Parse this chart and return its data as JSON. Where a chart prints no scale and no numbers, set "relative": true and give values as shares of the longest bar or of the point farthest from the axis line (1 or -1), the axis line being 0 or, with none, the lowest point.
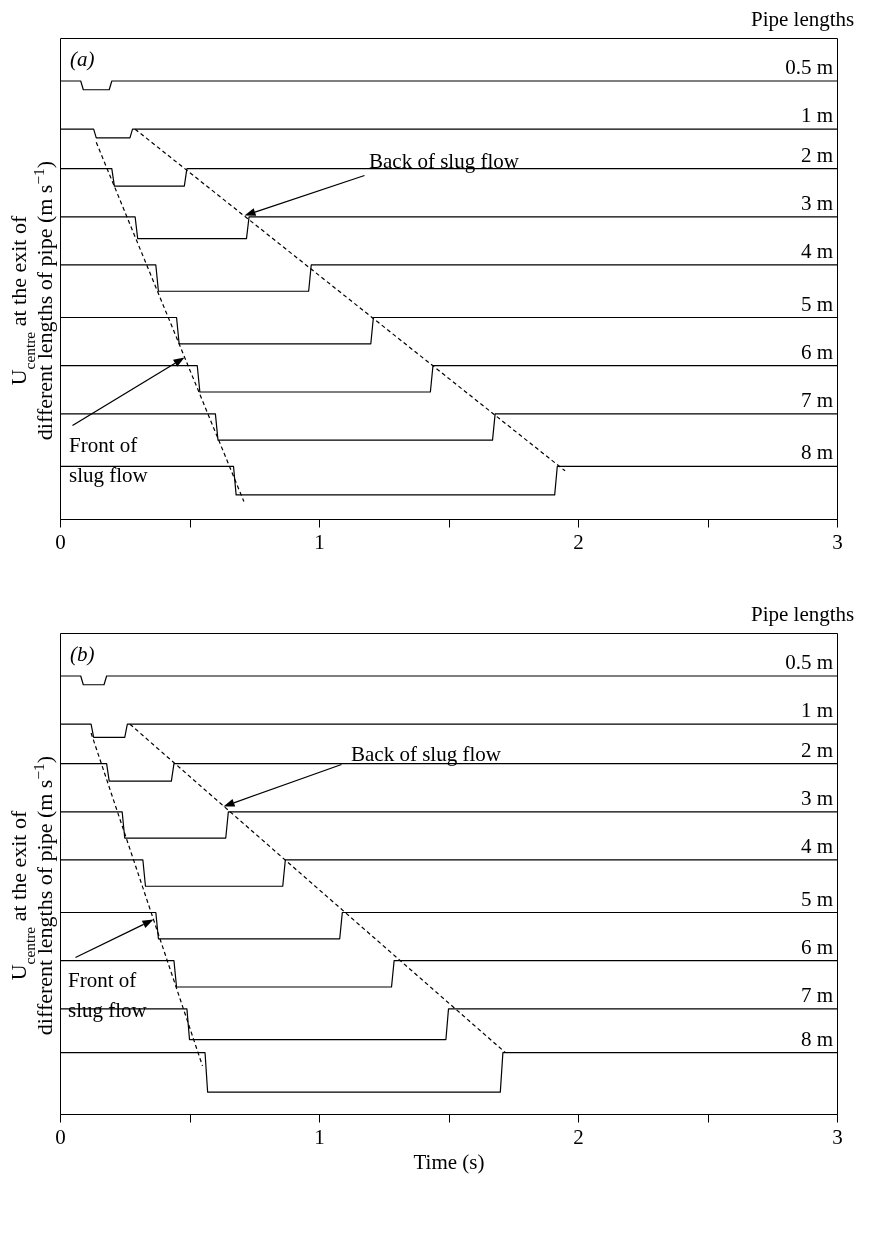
{
  "chart_data": [
    {
      "type": "line",
      "title": "(a)",
      "ylabel": "U$_{centre}$ at the exit of\ndifferent lengths of pipe (m s$^{−1}$)",
      "legend_title": "Pipe lengths",
      "relative": true,
      "xlim": [
        0,
        3
      ],
      "xticks": [
        0,
        {
          "value": 0.5,
          "label": null
        },
        1,
        {
          "value": 1.5,
          "label": null
        },
        2,
        {
          "value": 2.5,
          "label": null
        },
        3
      ],
      "annotations": [
        "Back of slug flow",
        "Front of\nslug flow"
      ],
      "series": [
        {
          "name": "0.5 m",
          "color": "#000000",
          "x": [
            0,
            0.08,
            0.09,
            0.19,
            0.2,
            3
          ],
          "values": [
            1,
            1,
            0.98,
            0.98,
            1,
            1
          ]
        },
        {
          "name": "1 m",
          "color": "#000000",
          "x": [
            0,
            0.13,
            0.14,
            0.27,
            0.28,
            3
          ],
          "values": [
            0.89,
            0.89,
            0.87,
            0.87,
            0.89,
            0.89
          ]
        },
        {
          "name": "2 m",
          "color": "#000000",
          "x": [
            0,
            0.2,
            0.21,
            0.48,
            0.49,
            3
          ],
          "values": [
            0.8,
            0.8,
            0.76,
            0.76,
            0.8,
            0.8
          ]
        },
        {
          "name": "3 m",
          "color": "#000000",
          "x": [
            0,
            0.29,
            0.3,
            0.72,
            0.73,
            3
          ],
          "values": [
            0.69,
            0.69,
            0.64,
            0.64,
            0.69,
            0.69
          ]
        },
        {
          "name": "4 m",
          "color": "#000000",
          "x": [
            0,
            0.37,
            0.38,
            0.96,
            0.97,
            3
          ],
          "values": [
            0.58,
            0.58,
            0.52,
            0.52,
            0.58,
            0.58
          ]
        },
        {
          "name": "5 m",
          "color": "#000000",
          "x": [
            0,
            0.45,
            0.46,
            1.2,
            1.21,
            3
          ],
          "values": [
            0.46,
            0.46,
            0.4,
            0.4,
            0.46,
            0.46
          ]
        },
        {
          "name": "6 m",
          "color": "#000000",
          "x": [
            0,
            0.53,
            0.54,
            1.43,
            1.44,
            3
          ],
          "values": [
            0.35,
            0.35,
            0.29,
            0.29,
            0.35,
            0.35
          ]
        },
        {
          "name": "7 m",
          "color": "#000000",
          "x": [
            0,
            0.6,
            0.61,
            1.67,
            1.68,
            3
          ],
          "values": [
            0.24,
            0.24,
            0.18,
            0.18,
            0.24,
            0.24
          ]
        },
        {
          "name": "8 m",
          "color": "#000000",
          "x": [
            0,
            0.67,
            0.68,
            1.91,
            1.92,
            3
          ],
          "values": [
            0.12,
            0.12,
            0.055,
            0.055,
            0.12,
            0.12
          ]
        },
        {
          "type": "line",
          "line_style": "dashed",
          "color": "#000000",
          "x": [
            0.14,
            0.71
          ],
          "values": [
            0.86,
            0.04
          ]
        },
        {
          "type": "line",
          "line_style": "dashed",
          "color": "#000000",
          "x": [
            0.29,
            1.95
          ],
          "values": [
            0.89,
            0.11
          ]
        }
      ]
    },
    {
      "type": "line",
      "title": "(b)",
      "ylabel": "U$_{centre}$ at the exit of\ndifferent lengths of pipe (m s$^{−1}$)",
      "xlabel": "Time (s)",
      "legend_title": "Pipe lengths",
      "relative": true,
      "xlim": [
        0,
        3
      ],
      "xticks": [
        0,
        {
          "value": 0.5,
          "label": null
        },
        1,
        {
          "value": 1.5,
          "label": null
        },
        2,
        {
          "value": 2.5,
          "label": null
        },
        3
      ],
      "annotations": [
        "Back of slug flow",
        "Front of\nslug flow"
      ],
      "series": [
        {
          "name": "0.5 m",
          "color": "#000000",
          "x": [
            0,
            0.08,
            0.09,
            0.17,
            0.18,
            3
          ],
          "values": [
            1,
            1,
            0.98,
            0.98,
            1,
            1
          ]
        },
        {
          "name": "1 m",
          "color": "#000000",
          "x": [
            0,
            0.12,
            0.13,
            0.25,
            0.26,
            3
          ],
          "values": [
            0.89,
            0.89,
            0.86,
            0.86,
            0.89,
            0.89
          ]
        },
        {
          "name": "2 m",
          "color": "#000000",
          "x": [
            0,
            0.18,
            0.19,
            0.43,
            0.44,
            3
          ],
          "values": [
            0.8,
            0.8,
            0.76,
            0.76,
            0.8,
            0.8
          ]
        },
        {
          "name": "3 m",
          "color": "#000000",
          "x": [
            0,
            0.24,
            0.25,
            0.64,
            0.65,
            3
          ],
          "values": [
            0.69,
            0.69,
            0.63,
            0.63,
            0.69,
            0.69
          ]
        },
        {
          "name": "4 m",
          "color": "#000000",
          "x": [
            0,
            0.32,
            0.33,
            0.86,
            0.87,
            3
          ],
          "values": [
            0.58,
            0.58,
            0.52,
            0.52,
            0.58,
            0.58
          ]
        },
        {
          "name": "5 m",
          "color": "#000000",
          "x": [
            0,
            0.37,
            0.38,
            1.08,
            1.09,
            3
          ],
          "values": [
            0.46,
            0.46,
            0.4,
            0.4,
            0.46,
            0.46
          ]
        },
        {
          "name": "6 m",
          "color": "#000000",
          "x": [
            0,
            0.44,
            0.45,
            1.28,
            1.29,
            3
          ],
          "values": [
            0.35,
            0.35,
            0.29,
            0.29,
            0.35,
            0.35
          ]
        },
        {
          "name": "7 m",
          "color": "#000000",
          "x": [
            0,
            0.49,
            0.5,
            1.49,
            1.5,
            3
          ],
          "values": [
            0.24,
            0.24,
            0.17,
            0.17,
            0.24,
            0.24
          ]
        },
        {
          "name": "8 m",
          "color": "#000000",
          "x": [
            0,
            0.56,
            0.57,
            1.7,
            1.71,
            3
          ],
          "values": [
            0.14,
            0.14,
            0.05,
            0.05,
            0.14,
            0.14
          ]
        },
        {
          "type": "line",
          "line_style": "dashed",
          "color": "#000000",
          "x": [
            0.12,
            0.55
          ],
          "values": [
            0.87,
            0.11
          ]
        },
        {
          "type": "line",
          "line_style": "dashed",
          "color": "#000000",
          "x": [
            0.27,
            1.72
          ],
          "values": [
            0.89,
            0.14
          ]
        }
      ]
    }
  ]
}
